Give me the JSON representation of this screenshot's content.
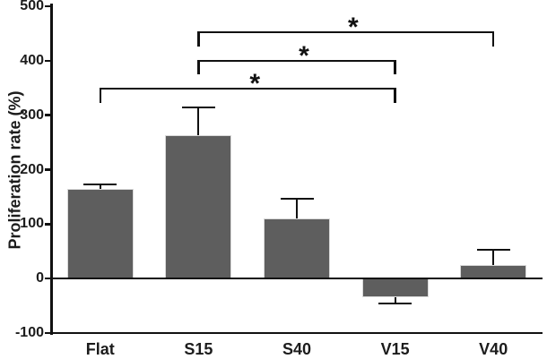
{
  "chart_data": {
    "type": "bar",
    "title": "",
    "xlabel": "",
    "ylabel": "Proliferation rate (%)",
    "categories": [
      "Flat",
      "S15",
      "S40",
      "V15",
      "V40"
    ],
    "values": [
      165,
      264,
      110,
      -34,
      25
    ],
    "errors": [
      8,
      50,
      36,
      12,
      28
    ],
    "yticks": [
      500,
      400,
      300,
      200,
      100,
      0,
      -100
    ],
    "ylim": [
      -100,
      500
    ],
    "grid": false,
    "legend_position": "none",
    "bar_color": "#5e5e5e",
    "bar_border_color": "#d9d9d9",
    "axis_color": "#111111",
    "text_color": "#1c1c1c",
    "significance_brackets": [
      {
        "from": "S15",
        "to": "V40",
        "label": "*",
        "row": 0
      },
      {
        "from": "S15",
        "to": "V15",
        "label": "*",
        "row": 1
      },
      {
        "from": "Flat",
        "to": "V15",
        "label": "*",
        "row": 2
      }
    ]
  }
}
